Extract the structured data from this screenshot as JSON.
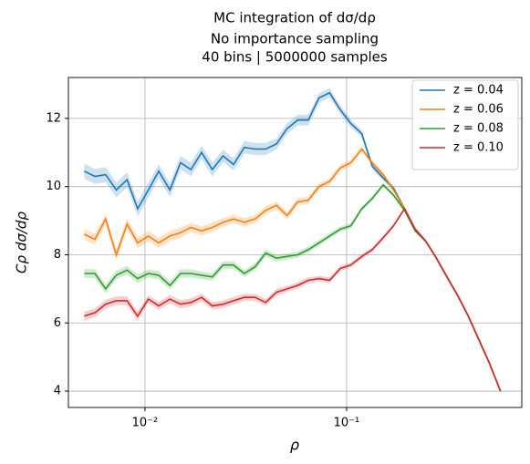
{
  "chart_data": {
    "type": "line",
    "title": "MC integration of dσ/dρ",
    "subtitle": [
      "No importance sampling",
      "40 bins | 5000000 samples"
    ],
    "x_label": "ρ",
    "y_label": "Cρ dσ/dρ",
    "x": [
      0.005,
      0.00565,
      0.00638,
      0.00721,
      0.00815,
      0.0092,
      0.0104,
      0.0117,
      0.0133,
      0.015,
      0.0169,
      0.0191,
      0.0216,
      0.0244,
      0.0275,
      0.0311,
      0.0352,
      0.0397,
      0.0449,
      0.0507,
      0.0572,
      0.0646,
      0.073,
      0.0824,
      0.0931,
      0.105,
      0.119,
      0.134,
      0.152,
      0.171,
      0.194,
      0.219,
      0.247,
      0.279,
      0.315,
      0.356,
      0.402,
      0.454,
      0.513,
      0.58
    ],
    "series": [
      {
        "name": "z = 0.04",
        "color": "#1f77b4",
        "values": [
          10.45,
          10.3,
          10.35,
          9.9,
          10.2,
          9.35,
          9.9,
          10.45,
          9.9,
          10.7,
          10.5,
          11.0,
          10.5,
          10.9,
          10.65,
          11.15,
          11.1,
          11.1,
          11.25,
          11.7,
          11.95,
          11.95,
          12.6,
          12.75,
          12.25,
          11.85,
          11.55,
          10.6,
          10.25,
          9.95,
          9.35,
          8.75,
          8.4,
          7.9,
          7.35,
          6.8,
          6.2,
          5.5,
          4.8,
          4.0
        ],
        "errors": [
          0.22,
          0.22,
          0.22,
          0.22,
          0.22,
          0.22,
          0.22,
          0.2,
          0.2,
          0.2,
          0.2,
          0.2,
          0.2,
          0.18,
          0.18,
          0.18,
          0.18,
          0.18,
          0.16,
          0.16,
          0.16,
          0.16,
          0.14,
          0.14,
          0.12,
          0.12,
          0.1,
          0.1,
          0.08,
          0.07,
          0.06,
          0.05,
          0.05,
          0.04,
          0.04,
          0.04,
          0.03,
          0.03,
          0.03,
          0.03
        ]
      },
      {
        "name": "z = 0.06",
        "color": "#ff7f0e",
        "values": [
          8.6,
          8.45,
          9.05,
          8.0,
          8.9,
          8.35,
          8.55,
          8.35,
          8.55,
          8.65,
          8.8,
          8.7,
          8.8,
          8.95,
          9.05,
          8.95,
          9.05,
          9.3,
          9.45,
          9.15,
          9.55,
          9.6,
          10.0,
          10.15,
          10.55,
          10.7,
          11.1,
          10.7,
          10.35,
          9.9,
          9.35,
          8.75,
          8.4,
          7.9,
          7.35,
          6.8,
          6.2,
          5.5,
          4.8,
          4.0
        ],
        "errors": [
          0.16,
          0.16,
          0.16,
          0.16,
          0.16,
          0.16,
          0.15,
          0.15,
          0.15,
          0.15,
          0.14,
          0.14,
          0.14,
          0.13,
          0.13,
          0.13,
          0.12,
          0.12,
          0.12,
          0.11,
          0.11,
          0.1,
          0.1,
          0.1,
          0.09,
          0.09,
          0.08,
          0.08,
          0.07,
          0.06,
          0.05,
          0.05,
          0.04,
          0.04,
          0.04,
          0.03,
          0.03,
          0.03,
          0.03,
          0.03
        ]
      },
      {
        "name": "z = 0.08",
        "color": "#2ca02c",
        "values": [
          7.45,
          7.45,
          7.0,
          7.4,
          7.55,
          7.3,
          7.45,
          7.4,
          7.1,
          7.45,
          7.45,
          7.4,
          7.35,
          7.7,
          7.7,
          7.45,
          7.65,
          8.05,
          7.9,
          7.95,
          8.0,
          8.15,
          8.35,
          8.55,
          8.75,
          8.85,
          9.35,
          9.65,
          10.05,
          9.75,
          9.3,
          8.7,
          8.4,
          7.9,
          7.35,
          6.8,
          6.2,
          5.5,
          4.8,
          4.0
        ],
        "errors": [
          0.13,
          0.13,
          0.13,
          0.13,
          0.13,
          0.13,
          0.12,
          0.12,
          0.12,
          0.12,
          0.12,
          0.11,
          0.11,
          0.11,
          0.11,
          0.1,
          0.1,
          0.1,
          0.1,
          0.09,
          0.09,
          0.09,
          0.08,
          0.08,
          0.08,
          0.07,
          0.07,
          0.06,
          0.06,
          0.05,
          0.05,
          0.04,
          0.04,
          0.04,
          0.03,
          0.03,
          0.03,
          0.03,
          0.03,
          0.03
        ]
      },
      {
        "name": "z = 0.10",
        "color": "#d62728",
        "values": [
          6.2,
          6.3,
          6.55,
          6.65,
          6.65,
          6.2,
          6.7,
          6.5,
          6.7,
          6.55,
          6.6,
          6.75,
          6.5,
          6.55,
          6.65,
          6.75,
          6.75,
          6.6,
          6.9,
          7.0,
          7.1,
          7.25,
          7.3,
          7.25,
          7.6,
          7.7,
          7.95,
          8.15,
          8.5,
          8.85,
          9.35,
          8.75,
          8.4,
          7.9,
          7.35,
          6.8,
          6.2,
          5.5,
          4.8,
          4.0
        ],
        "errors": [
          0.13,
          0.13,
          0.13,
          0.13,
          0.13,
          0.13,
          0.12,
          0.12,
          0.12,
          0.12,
          0.12,
          0.11,
          0.11,
          0.11,
          0.11,
          0.1,
          0.1,
          0.1,
          0.1,
          0.09,
          0.09,
          0.09,
          0.08,
          0.08,
          0.08,
          0.07,
          0.07,
          0.06,
          0.06,
          0.05,
          0.05,
          0.04,
          0.04,
          0.04,
          0.03,
          0.03,
          0.03,
          0.03,
          0.03,
          0.03
        ]
      }
    ],
    "xlim": [
      0.00417,
      0.74
    ],
    "x_log": true,
    "xticks": [
      {
        "value": 0.01,
        "label": "10⁻²"
      },
      {
        "value": 0.1,
        "label": "10⁻¹"
      }
    ],
    "ylim": [
      3.52,
      13.2
    ],
    "yticks": [
      4,
      6,
      8,
      10,
      12
    ],
    "grid": true,
    "legend": "upper right"
  }
}
